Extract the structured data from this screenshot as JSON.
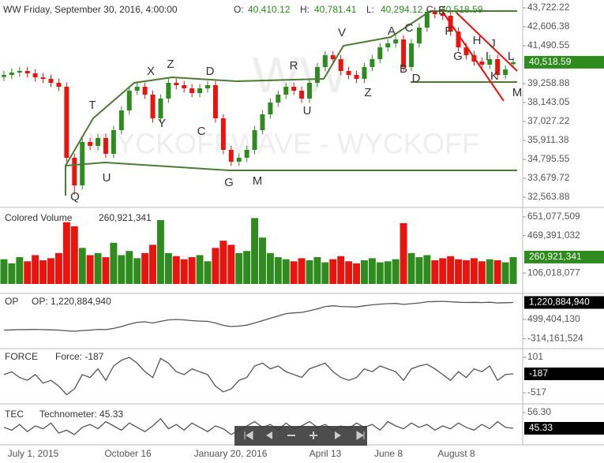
{
  "header": {
    "symbol": "WW",
    "datetime": "Friday, September 30, 2016, 4:00:00",
    "items": [
      {
        "k": "O:",
        "v": "40,410.12"
      },
      {
        "k": "H:",
        "v": "40,781.41"
      },
      {
        "k": "L:",
        "v": "40,294.12"
      },
      {
        "k": "C:",
        "v": "40,518.59"
      }
    ]
  },
  "watermark": [
    "WW",
    "WYCKOFFWAVE - WYCKOFF"
  ],
  "x_axis": {
    "labels": [
      "July 1, 2015",
      "October 16",
      "January 20, 2016",
      "April 13",
      "June 8",
      "August 8"
    ]
  },
  "chart_data": [
    {
      "type": "candlestick",
      "up_color": "#2e8b1e",
      "down_color": "#e8140e",
      "badge": "40,518.59",
      "badge_color": "#2e8b1e",
      "ylim": [
        32005.96,
        44187.15
      ],
      "yticks": [
        {
          "value": 43722.22,
          "label": "43,722.22"
        },
        {
          "value": 42606.38,
          "label": "42,606.38"
        },
        {
          "value": 41490.55,
          "label": "41,490.55"
        },
        {
          "value": 39258.88,
          "label": "39,258.88"
        },
        {
          "value": 38143.05,
          "label": "38,143.05"
        },
        {
          "value": 37027.22,
          "label": "37,027.22"
        },
        {
          "value": 35911.38,
          "label": "35,911.38"
        },
        {
          "value": 34795.55,
          "label": "34,795.55"
        },
        {
          "value": 33679.72,
          "label": "33,679.72"
        },
        {
          "value": 32563.88,
          "label": "32,563.88"
        }
      ],
      "annotations": [
        "Q",
        "T",
        "U",
        "X",
        "Y",
        "Z",
        "C",
        "D",
        "G",
        "M",
        "R",
        "U",
        "V",
        "Z",
        "A",
        "B",
        "C",
        "D",
        "E",
        "F",
        "G",
        "H",
        "I",
        "J",
        "K",
        "L",
        "M"
      ],
      "ohlc": [
        [
          39650,
          40020,
          39400,
          39770
        ],
        [
          39770,
          40160,
          39520,
          39910
        ],
        [
          39910,
          40253,
          39660,
          40003
        ],
        [
          40003,
          40253,
          39613,
          39863
        ],
        [
          39863,
          40113,
          39381,
          39631
        ],
        [
          39631,
          39881,
          39288,
          39538
        ],
        [
          39538,
          39788,
          39055,
          39305
        ],
        [
          39305,
          39555,
          38823,
          39073
        ],
        [
          39073,
          39323,
          34639,
          34889
        ],
        [
          34889,
          35139,
          32700,
          33262
        ],
        [
          33262,
          36069,
          33012,
          35819
        ],
        [
          35819,
          36069,
          35336,
          35586
        ],
        [
          35586,
          36301,
          35336,
          36051
        ],
        [
          36051,
          36301,
          34871,
          35121
        ],
        [
          35121,
          36766,
          34871,
          36516
        ],
        [
          36516,
          37928,
          36266,
          37678
        ],
        [
          37678,
          39091,
          37428,
          38841
        ],
        [
          38841,
          39323,
          38591,
          39073
        ],
        [
          39073,
          39323,
          38358,
          38608
        ],
        [
          38608,
          38858,
          36963,
          37213
        ],
        [
          37213,
          38626,
          36963,
          38376
        ],
        [
          38376,
          39555,
          38126,
          39305
        ],
        [
          39305,
          39555,
          38916,
          39166
        ],
        [
          39166,
          39416,
          38730,
          38980
        ],
        [
          38980,
          39230,
          38451,
          38701
        ],
        [
          38701,
          39230,
          38451,
          38980
        ],
        [
          38980,
          39416,
          38730,
          39166
        ],
        [
          39166,
          39416,
          36963,
          37213
        ],
        [
          37213,
          37463,
          35104,
          35354
        ],
        [
          35354,
          35604,
          34406,
          34656
        ],
        [
          34656,
          35139,
          34406,
          34889
        ],
        [
          34889,
          35604,
          34639,
          35354
        ],
        [
          35354,
          36766,
          35104,
          36516
        ],
        [
          36516,
          37696,
          36266,
          37446
        ],
        [
          37446,
          38393,
          37196,
          38143
        ],
        [
          38143,
          38858,
          37893,
          38608
        ],
        [
          38608,
          39323,
          38358,
          39073
        ],
        [
          39073,
          39323,
          38591,
          38841
        ],
        [
          38841,
          39091,
          38126,
          38376
        ],
        [
          38376,
          39555,
          38126,
          39305
        ],
        [
          39305,
          40485,
          39055,
          40235
        ],
        [
          40235,
          41183,
          39985,
          40933
        ],
        [
          40933,
          41183,
          40450,
          40700
        ],
        [
          40700,
          40950,
          39753,
          40003
        ],
        [
          40003,
          40253,
          39520,
          39770
        ],
        [
          39770,
          40020,
          39288,
          39538
        ],
        [
          39538,
          40485,
          39288,
          40235
        ],
        [
          40235,
          40950,
          39985,
          40700
        ],
        [
          40700,
          41647,
          40450,
          41397
        ],
        [
          41397,
          41880,
          41147,
          41630
        ],
        [
          41630,
          42112,
          41380,
          41862
        ],
        [
          41862,
          42112,
          39985,
          40235
        ],
        [
          40235,
          41880,
          39985,
          41630
        ],
        [
          41630,
          42810,
          41380,
          42560
        ],
        [
          42560,
          43740,
          42310,
          43490
        ],
        [
          43490,
          43740,
          43100,
          43350
        ],
        [
          43350,
          43600,
          43007,
          43257
        ],
        [
          43257,
          43507,
          42077,
          42327
        ],
        [
          42327,
          42577,
          41147,
          41397
        ],
        [
          41397,
          41647,
          40683,
          40933
        ],
        [
          40933,
          41183,
          40311,
          40561
        ],
        [
          40561,
          40811,
          40125,
          40375
        ],
        [
          40375,
          40950,
          40125,
          40700
        ],
        [
          40700,
          40950,
          39520,
          39770
        ],
        [
          39770,
          40346,
          39520,
          40096
        ],
        [
          40410.12,
          40781.41,
          40294.12,
          40518.59
        ]
      ]
    },
    {
      "type": "bar",
      "title": "Colored Volume",
      "legend": "260,921,341",
      "badge": "260,921,341",
      "badge_color": "#2e8b1e",
      "up_color": "#2e8b1e",
      "down_color": "#e8140e",
      "ylim": [
        0,
        727700000
      ],
      "yticks": [
        {
          "value": 651077509,
          "label": "651,077,509"
        },
        {
          "value": 469391032,
          "label": "469,391,032"
        },
        {
          "value": 106018077,
          "label": "106,018,077"
        }
      ],
      "values": [
        240000000,
        200000000,
        260000000,
        220000000,
        280000000,
        230000000,
        250000000,
        300000000,
        600000000,
        560000000,
        350000000,
        280000000,
        300000000,
        260000000,
        400000000,
        280000000,
        320000000,
        250000000,
        300000000,
        380000000,
        620000000,
        300000000,
        270000000,
        240000000,
        260000000,
        280000000,
        220000000,
        350000000,
        420000000,
        380000000,
        300000000,
        320000000,
        640000000,
        450000000,
        300000000,
        260000000,
        240000000,
        220000000,
        250000000,
        230000000,
        260000000,
        210000000,
        240000000,
        270000000,
        220000000,
        200000000,
        230000000,
        250000000,
        210000000,
        220000000,
        240000000,
        590000000,
        300000000,
        260000000,
        280000000,
        230000000,
        250000000,
        270000000,
        240000000,
        230000000,
        250000000,
        220000000,
        240000000,
        230000000,
        210000000,
        260921341
      ]
    },
    {
      "type": "line",
      "title": "OP",
      "legend": "OP: 1,220,884,940",
      "badge": "1,220,884,940",
      "badge_color": "#000000",
      "color": "#555555",
      "ylim": [
        -668000000,
        1504000000
      ],
      "yticks": [
        {
          "value": 499404130,
          "label": "499,404,130"
        },
        {
          "value": -314161524,
          "label": "-314,161,524"
        }
      ],
      "values": [
        50000000,
        60000000,
        70000000,
        75000000,
        80000000,
        70000000,
        60000000,
        50000000,
        20000000,
        0,
        30000000,
        50000000,
        80000000,
        70000000,
        120000000,
        200000000,
        300000000,
        380000000,
        400000000,
        350000000,
        420000000,
        480000000,
        500000000,
        480000000,
        450000000,
        430000000,
        420000000,
        350000000,
        250000000,
        200000000,
        220000000,
        260000000,
        350000000,
        450000000,
        550000000,
        650000000,
        750000000,
        780000000,
        800000000,
        870000000,
        950000000,
        1050000000,
        1080000000,
        1050000000,
        1040000000,
        1030000000,
        1080000000,
        1120000000,
        1150000000,
        1170000000,
        1180000000,
        1140000000,
        1170000000,
        1200000000,
        1250000000,
        1260000000,
        1270000000,
        1250000000,
        1230000000,
        1220000000,
        1225000000,
        1215000000,
        1230000000,
        1200000000,
        1210000000,
        1220884940
      ]
    },
    {
      "type": "line",
      "title": "FORCE",
      "legend": "Force: -187",
      "badge": "-187",
      "badge_color": "#000000",
      "color": "#555555",
      "ylim": [
        -682,
        211
      ],
      "yticks": [
        101,
        -517
      ],
      "values": [
        -200,
        -150,
        -250,
        -300,
        -200,
        -350,
        -300,
        -400,
        -550,
        -450,
        -200,
        -250,
        -100,
        -300,
        -50,
        50,
        100,
        0,
        -150,
        -250,
        80,
        0,
        -150,
        -200,
        -100,
        -150,
        -200,
        -400,
        -500,
        -450,
        -300,
        -250,
        -50,
        0,
        -100,
        -50,
        -150,
        -200,
        -250,
        -100,
        -50,
        0,
        -150,
        -250,
        -300,
        -250,
        -100,
        -150,
        -50,
        -100,
        -150,
        -300,
        -100,
        -50,
        -20,
        -100,
        -200,
        -300,
        -150,
        -250,
        -100,
        -150,
        -50,
        -300,
        -200,
        -187
      ]
    },
    {
      "type": "line",
      "title": "TEC",
      "legend": "Technometer: 45.33",
      "badge": "45.33",
      "badge_color": "#000000",
      "color": "#555555",
      "ylim": [
        36,
        60.69
      ],
      "yticks": [
        {
          "value": 56.3,
          "label": "56.30"
        }
      ],
      "values": [
        46,
        44,
        48,
        43,
        47,
        45,
        49,
        42,
        44,
        41,
        46,
        48,
        45,
        50,
        47,
        44,
        49,
        46,
        43,
        47,
        52,
        45,
        48,
        44,
        49,
        46,
        43,
        47,
        45,
        41,
        44,
        47,
        50,
        46,
        48,
        44,
        49,
        45,
        47,
        50,
        46,
        48,
        44,
        47,
        45,
        49,
        46,
        48,
        44,
        50,
        47,
        45,
        49,
        46,
        48,
        44,
        47,
        45,
        49,
        46,
        44,
        48,
        45,
        50,
        46,
        45.33
      ]
    }
  ]
}
